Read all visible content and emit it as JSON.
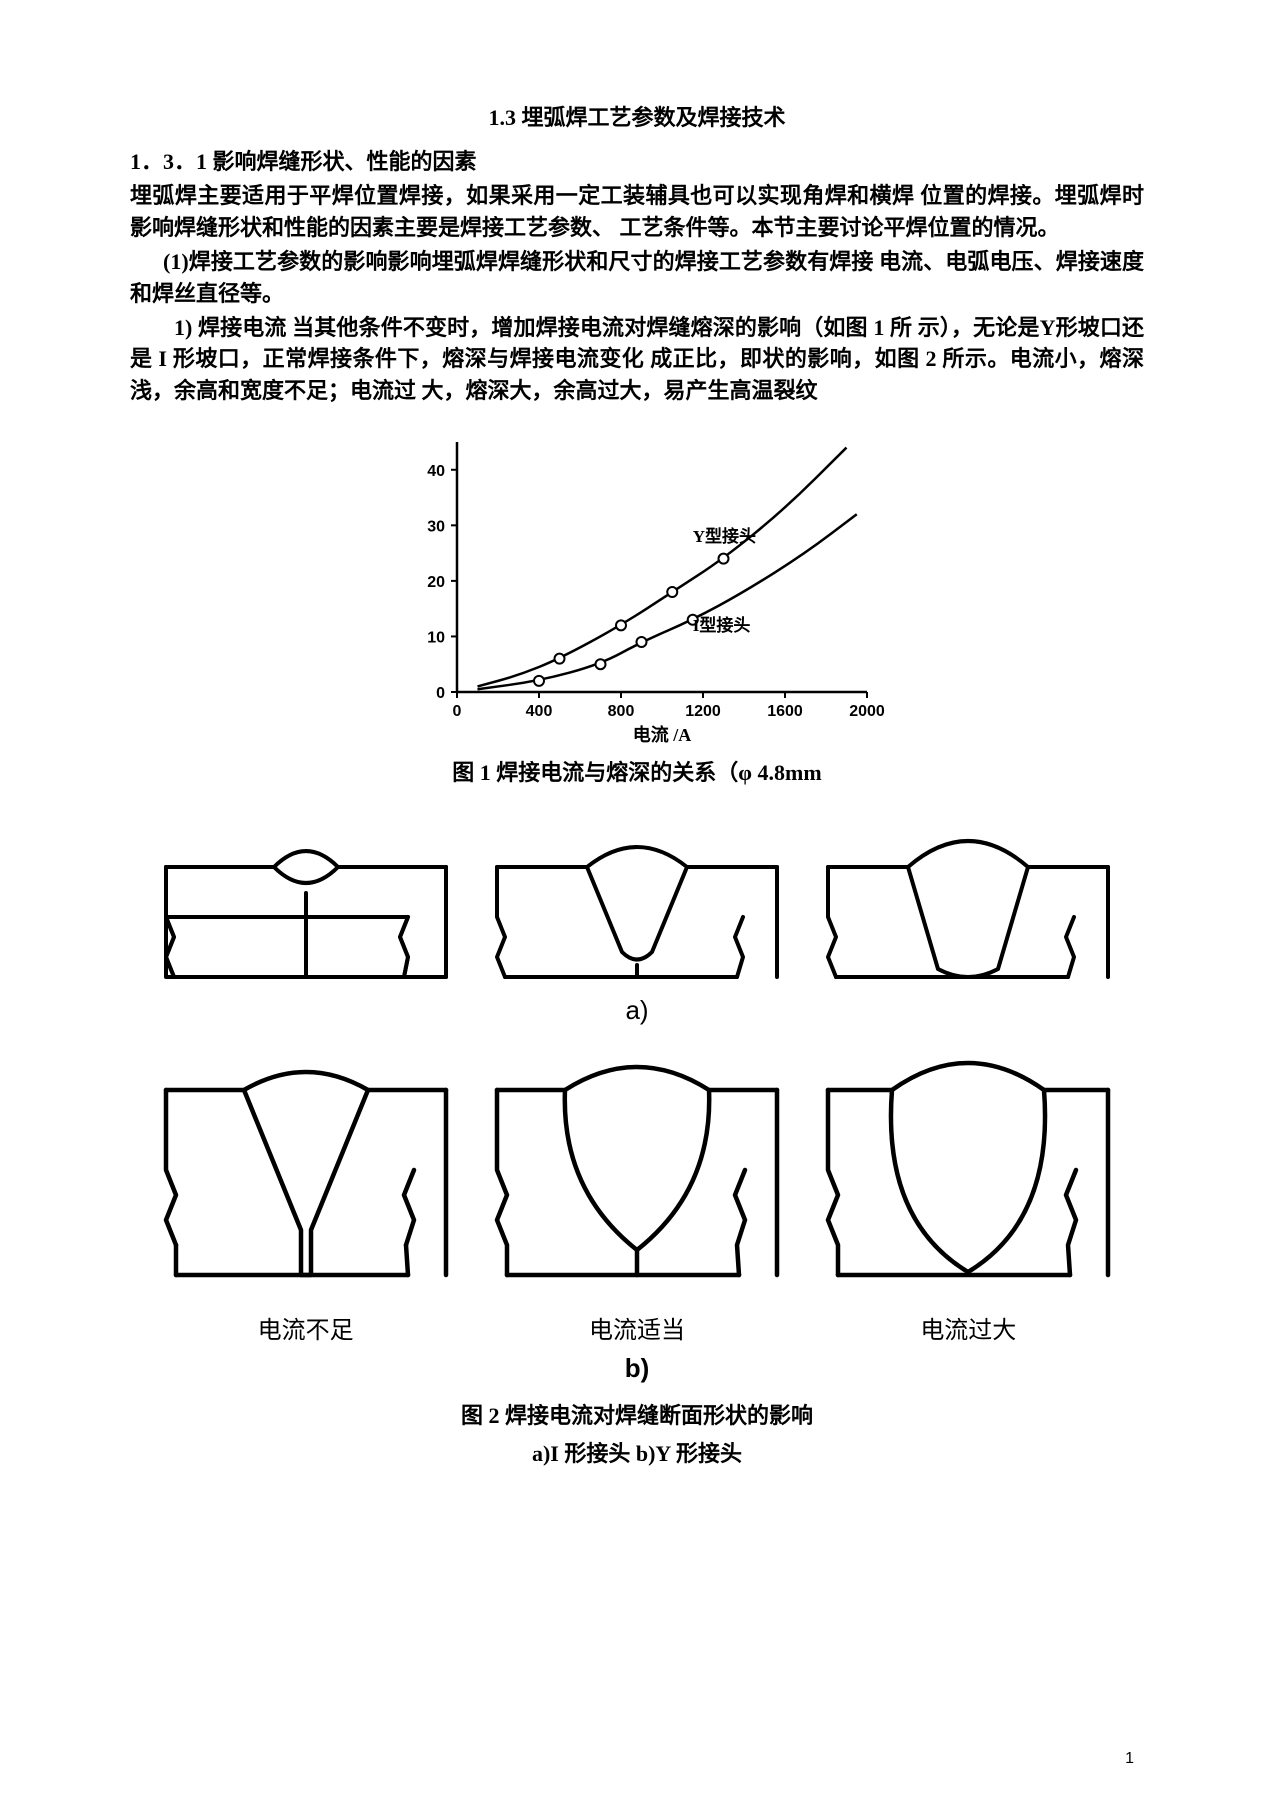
{
  "title": "1.3 埋弧焊工艺参数及焊接技术",
  "section_heading": "1．3．1 影响焊缝形状、性能的因素",
  "para1": "埋弧焊主要适用于平焊位置焊接，如果采用一定工装辅具也可以实现角焊和横焊 位置的焊接。埋弧焊时影响焊缝形状和性能的因素主要是焊接工艺参数、    工艺条件等。本节主要讨论平焊位置的情况。",
  "para2": "(1)焊接工艺参数的影响影响埋弧焊焊缝形状和尺寸的焊接工艺参数有焊接 电流、电弧电压、焊接速度和焊丝直径等。",
  "para3": "1) 焊接电流 当其他条件不变时，增加焊接电流对焊缝熔深的影响（如图 1 所 示），无论是Y形坡口还是 I 形坡口，正常焊接条件下，熔深与焊接电流变化 成正比，即状的影响，如图 2 所示。电流小，熔深浅，余高和宽度不足；电流过 大，熔深大，余高过大，易产生高温裂纹",
  "fig1": {
    "type": "line",
    "xlabel": "电流 /A",
    "series1_label": "Y型接头",
    "series2_label": "I型接头",
    "xlim": [
      0,
      2000
    ],
    "ylim": [
      0,
      45
    ],
    "xticks": [
      0,
      400,
      800,
      1200,
      1600,
      2000
    ],
    "yticks": [
      0,
      10,
      20,
      30,
      40
    ],
    "line_color": "#000000",
    "marker_color": "#ffffff",
    "marker_stroke": "#000000",
    "background": "#ffffff",
    "axis_width": 2.5,
    "line_width": 2.5,
    "series1_points": [
      [
        100,
        1
      ],
      [
        300,
        3
      ],
      [
        500,
        6
      ],
      [
        800,
        12
      ],
      [
        1050,
        18
      ],
      [
        1300,
        24
      ],
      [
        1600,
        33
      ],
      [
        1900,
        44
      ]
    ],
    "series2_points": [
      [
        100,
        0.5
      ],
      [
        400,
        2
      ],
      [
        700,
        5
      ],
      [
        900,
        9
      ],
      [
        1150,
        13
      ],
      [
        1400,
        18
      ],
      [
        1700,
        25
      ],
      [
        1950,
        32
      ]
    ],
    "series1_markers": [
      [
        500,
        6
      ],
      [
        800,
        12
      ],
      [
        1050,
        18
      ],
      [
        1300,
        24
      ]
    ],
    "series2_markers": [
      [
        400,
        2
      ],
      [
        700,
        5
      ],
      [
        900,
        9
      ],
      [
        1150,
        13
      ]
    ],
    "label_fontsize": 16
  },
  "caption1": "图 1 焊接电流与熔深的关系（φ 4.8mm",
  "fig2": {
    "type": "infographic",
    "stroke": "#000000",
    "stroke_width": 4,
    "fill": "#ffffff",
    "row_a_label": "a)",
    "row_b_label": "b)",
    "col_labels": [
      "电流不足",
      "电流适当",
      "电流过大"
    ]
  },
  "caption2": "图 2 焊接电流对焊缝断面形状的影响",
  "subcaption2": "a)I 形接头  b)Y 形接头",
  "page_number": "1"
}
